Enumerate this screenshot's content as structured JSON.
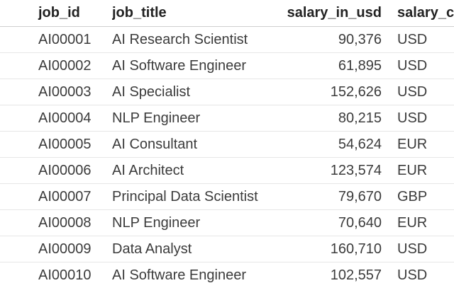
{
  "table": {
    "headers": {
      "job_id": "job_id",
      "job_title": "job_title",
      "salary_in_usd": "salary_in_usd",
      "salary_currency": "salary_c"
    },
    "rows": [
      {
        "job_id": "AI00001",
        "job_title": "AI Research Scientist",
        "salary_in_usd": "90,376",
        "salary_currency": "USD"
      },
      {
        "job_id": "AI00002",
        "job_title": "AI Software Engineer",
        "salary_in_usd": "61,895",
        "salary_currency": "USD"
      },
      {
        "job_id": "AI00003",
        "job_title": "AI Specialist",
        "salary_in_usd": "152,626",
        "salary_currency": "USD"
      },
      {
        "job_id": "AI00004",
        "job_title": "NLP Engineer",
        "salary_in_usd": "80,215",
        "salary_currency": "USD"
      },
      {
        "job_id": "AI00005",
        "job_title": "AI Consultant",
        "salary_in_usd": "54,624",
        "salary_currency": "EUR"
      },
      {
        "job_id": "AI00006",
        "job_title": "AI Architect",
        "salary_in_usd": "123,574",
        "salary_currency": "EUR"
      },
      {
        "job_id": "AI00007",
        "job_title": "Principal Data Scientist",
        "salary_in_usd": "79,670",
        "salary_currency": "GBP"
      },
      {
        "job_id": "AI00008",
        "job_title": "NLP Engineer",
        "salary_in_usd": "70,640",
        "salary_currency": "EUR"
      },
      {
        "job_id": "AI00009",
        "job_title": "Data Analyst",
        "salary_in_usd": "160,710",
        "salary_currency": "USD"
      },
      {
        "job_id": "AI00010",
        "job_title": "AI Software Engineer",
        "salary_in_usd": "102,557",
        "salary_currency": "USD"
      }
    ]
  }
}
